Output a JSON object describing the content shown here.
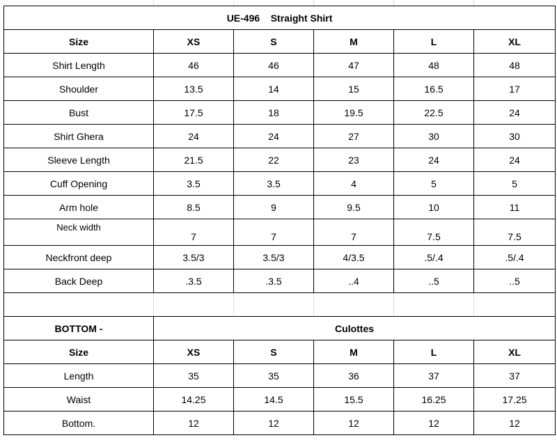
{
  "top": {
    "title": "UE-496    Straight Shirt",
    "header": [
      "Size",
      "XS",
      "S",
      "M",
      "L",
      "XL"
    ],
    "rows": [
      [
        "Shirt Length",
        "46",
        "46",
        "47",
        "48",
        "48"
      ],
      [
        "Shoulder",
        "13.5",
        "14",
        "15",
        "16.5",
        "17"
      ],
      [
        "Bust",
        "17.5",
        "18",
        "19.5",
        "22.5",
        "24"
      ],
      [
        "Shirt Ghera",
        "24",
        "24",
        "27",
        "30",
        "30"
      ],
      [
        "Sleeve Length",
        "21.5",
        "22",
        "23",
        "24",
        "24"
      ],
      [
        "Cuff Opening",
        "3.5",
        "3.5",
        "4",
        "5",
        "5"
      ],
      [
        "Arm hole",
        "8.5",
        "9",
        "9.5",
        "10",
        "11"
      ],
      [
        "Neck width",
        "7",
        "7",
        "7",
        "7.5",
        "7.5"
      ],
      [
        "Neckfront deep",
        "3.5/3",
        "3.5/3",
        "4/3.5",
        ".5/.4",
        ".5/.4"
      ],
      [
        "Back Deep",
        ".3.5",
        ".3.5",
        "..4",
        "..5",
        "..5"
      ]
    ]
  },
  "bottom": {
    "label": "BOTTOM -",
    "title": "Culottes",
    "header": [
      "Size",
      "XS",
      "S",
      "M",
      "L",
      "XL"
    ],
    "rows": [
      [
        "Length",
        "35",
        "35",
        "36",
        "37",
        "37"
      ],
      [
        "Waist",
        "14.25",
        "14.5",
        "15.5",
        "16.25",
        "17.25"
      ],
      [
        "Bottom.",
        "12",
        "12",
        "12",
        "12",
        "12"
      ]
    ]
  }
}
